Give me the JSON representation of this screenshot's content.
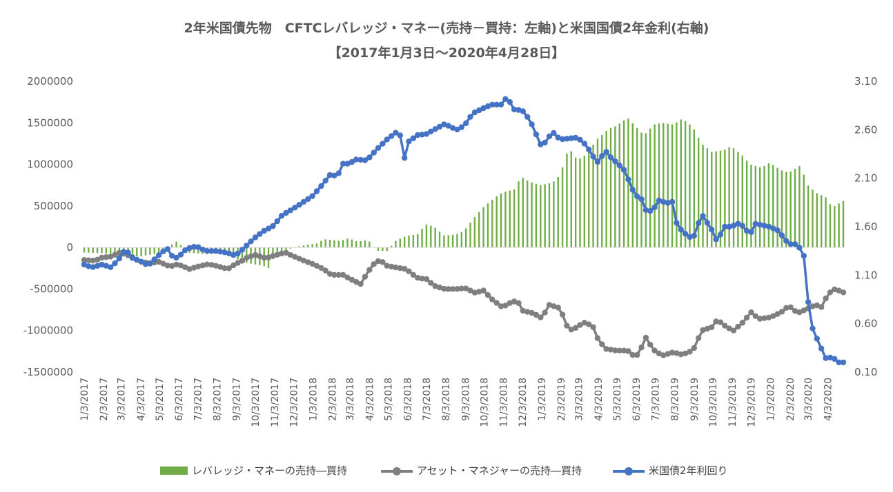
{
  "chart_data": {
    "type": "bar+line",
    "title": "2年米国債先物　CFTCレバレッジ・マネー(売持－買持：左軸)と米国国債2年金利(右軸)",
    "subtitle": "【2017年1月3日～2020年4月28日】",
    "x_tick_labels": [
      "1/3/2017",
      "2/3/2017",
      "3/3/2017",
      "4/3/2017",
      "5/3/2017",
      "6/3/2017",
      "7/3/2017",
      "8/3/2017",
      "9/3/2017",
      "10/3/2017",
      "11/3/2017",
      "12/3/2017",
      "1/3/2018",
      "2/3/2018",
      "3/3/2018",
      "4/3/2018",
      "5/3/2018",
      "6/3/2018",
      "7/3/2018",
      "8/3/2018",
      "9/3/2018",
      "10/3/2018",
      "11/3/2018",
      "12/3/2018",
      "1/3/2019",
      "2/3/2019",
      "3/3/2019",
      "4/3/2019",
      "5/3/2019",
      "6/3/2019",
      "7/3/2019",
      "8/3/2019",
      "9/3/2019",
      "10/3/2019",
      "11/3/2019",
      "12/3/2019",
      "1/3/2020",
      "2/3/2020",
      "3/3/2020",
      "4/3/2020"
    ],
    "x_start": "2017-01-03",
    "x_end": "2020-04-28",
    "y_left": {
      "ticks": [
        "2000000",
        "1500000",
        "1000000",
        "500000",
        "0",
        "-500000",
        "-1000000",
        "-1500000"
      ],
      "min": -1500000,
      "max": 2000000
    },
    "y_right": {
      "ticks": [
        "3.10",
        "2.60",
        "2.10",
        "1.60",
        "1.10",
        "0.60",
        "0.10"
      ],
      "min": 0.1,
      "max": 3.1
    },
    "grid": false,
    "legend_position": "bottom",
    "series": [
      {
        "name": "レバレッジ・マネーの売持―買持",
        "kind": "bar",
        "axis": "left",
        "color": "#70ad47",
        "points": [
          [
            "2017-01-03",
            -60000
          ],
          [
            "2017-02-01",
            -70000
          ],
          [
            "2017-03-01",
            -80000
          ],
          [
            "2017-04-01",
            -110000
          ],
          [
            "2017-05-01",
            -70000
          ],
          [
            "2017-06-01",
            80000
          ],
          [
            "2017-06-15",
            -60000
          ],
          [
            "2017-07-15",
            -80000
          ],
          [
            "2017-08-15",
            -70000
          ],
          [
            "2017-09-15",
            -180000
          ],
          [
            "2017-10-15",
            -220000
          ],
          [
            "2017-10-25",
            -250000
          ],
          [
            "2017-11-01",
            -120000
          ],
          [
            "2017-11-15",
            -40000
          ],
          [
            "2017-12-15",
            20000
          ],
          [
            "2018-01-10",
            50000
          ],
          [
            "2018-01-20",
            100000
          ],
          [
            "2018-02-15",
            80000
          ],
          [
            "2018-03-01",
            110000
          ],
          [
            "2018-03-15",
            70000
          ],
          [
            "2018-04-01",
            90000
          ],
          [
            "2018-04-15",
            -40000
          ],
          [
            "2018-05-01",
            -40000
          ],
          [
            "2018-05-15",
            80000
          ],
          [
            "2018-06-01",
            140000
          ],
          [
            "2018-06-20",
            160000
          ],
          [
            "2018-07-01",
            280000
          ],
          [
            "2018-07-15",
            250000
          ],
          [
            "2018-08-01",
            140000
          ],
          [
            "2018-08-20",
            160000
          ],
          [
            "2018-09-01",
            200000
          ],
          [
            "2018-09-15",
            340000
          ],
          [
            "2018-10-01",
            480000
          ],
          [
            "2018-10-20",
            600000
          ],
          [
            "2018-11-01",
            660000
          ],
          [
            "2018-11-20",
            700000
          ],
          [
            "2018-12-01",
            850000
          ],
          [
            "2018-12-15",
            790000
          ],
          [
            "2019-01-01",
            750000
          ],
          [
            "2019-01-20",
            780000
          ],
          [
            "2019-02-01",
            870000
          ],
          [
            "2019-02-15",
            1200000
          ],
          [
            "2019-03-01",
            1050000
          ],
          [
            "2019-03-15",
            1120000
          ],
          [
            "2019-04-01",
            1300000
          ],
          [
            "2019-04-20",
            1430000
          ],
          [
            "2019-05-01",
            1460000
          ],
          [
            "2019-05-20",
            1560000
          ],
          [
            "2019-06-01",
            1460000
          ],
          [
            "2019-06-15",
            1350000
          ],
          [
            "2019-07-01",
            1480000
          ],
          [
            "2019-07-15",
            1500000
          ],
          [
            "2019-08-01",
            1480000
          ],
          [
            "2019-08-15",
            1550000
          ],
          [
            "2019-09-01",
            1450000
          ],
          [
            "2019-09-15",
            1250000
          ],
          [
            "2019-10-01",
            1150000
          ],
          [
            "2019-10-20",
            1170000
          ],
          [
            "2019-11-01",
            1220000
          ],
          [
            "2019-11-20",
            1100000
          ],
          [
            "2019-12-01",
            1000000
          ],
          [
            "2019-12-20",
            960000
          ],
          [
            "2020-01-01",
            1020000
          ],
          [
            "2020-01-20",
            930000
          ],
          [
            "2020-02-01",
            900000
          ],
          [
            "2020-02-20",
            990000
          ],
          [
            "2020-03-01",
            760000
          ],
          [
            "2020-03-15",
            660000
          ],
          [
            "2020-04-01",
            600000
          ],
          [
            "2020-04-10",
            480000
          ],
          [
            "2020-04-28",
            560000
          ]
        ]
      },
      {
        "name": "アセット・マネジャーの売持―買持",
        "kind": "line",
        "axis": "left",
        "color": "#7f7f7f",
        "points": [
          [
            "2017-01-03",
            -150000
          ],
          [
            "2017-01-20",
            -160000
          ],
          [
            "2017-02-01",
            -120000
          ],
          [
            "2017-02-15",
            -110000
          ],
          [
            "2017-03-01",
            -60000
          ],
          [
            "2017-03-20",
            -110000
          ],
          [
            "2017-04-01",
            -170000
          ],
          [
            "2017-04-20",
            -190000
          ],
          [
            "2017-05-01",
            -170000
          ],
          [
            "2017-05-20",
            -230000
          ],
          [
            "2017-06-01",
            -200000
          ],
          [
            "2017-06-20",
            -260000
          ],
          [
            "2017-07-03",
            -230000
          ],
          [
            "2017-07-20",
            -200000
          ],
          [
            "2017-08-01",
            -220000
          ],
          [
            "2017-08-20",
            -260000
          ],
          [
            "2017-09-01",
            -200000
          ],
          [
            "2017-09-10",
            -170000
          ],
          [
            "2017-09-20",
            -120000
          ],
          [
            "2017-10-03",
            -90000
          ],
          [
            "2017-10-20",
            -130000
          ],
          [
            "2017-11-01",
            -100000
          ],
          [
            "2017-11-20",
            -60000
          ],
          [
            "2017-12-01",
            -100000
          ],
          [
            "2017-12-20",
            -160000
          ],
          [
            "2018-01-03",
            -200000
          ],
          [
            "2018-01-20",
            -260000
          ],
          [
            "2018-02-01",
            -330000
          ],
          [
            "2018-02-20",
            -330000
          ],
          [
            "2018-03-01",
            -370000
          ],
          [
            "2018-03-20",
            -440000
          ],
          [
            "2018-04-01",
            -290000
          ],
          [
            "2018-04-10",
            -200000
          ],
          [
            "2018-04-20",
            -150000
          ],
          [
            "2018-05-01",
            -220000
          ],
          [
            "2018-05-15",
            -240000
          ],
          [
            "2018-06-01",
            -260000
          ],
          [
            "2018-06-10",
            -320000
          ],
          [
            "2018-06-20",
            -370000
          ],
          [
            "2018-07-03",
            -380000
          ],
          [
            "2018-07-15",
            -460000
          ],
          [
            "2018-08-01",
            -500000
          ],
          [
            "2018-08-20",
            -500000
          ],
          [
            "2018-09-03",
            -490000
          ],
          [
            "2018-09-20",
            -550000
          ],
          [
            "2018-10-01",
            -510000
          ],
          [
            "2018-10-15",
            -620000
          ],
          [
            "2018-11-01",
            -720000
          ],
          [
            "2018-11-15",
            -660000
          ],
          [
            "2018-11-25",
            -640000
          ],
          [
            "2018-12-03",
            -760000
          ],
          [
            "2018-12-20",
            -790000
          ],
          [
            "2019-01-03",
            -850000
          ],
          [
            "2019-01-15",
            -690000
          ],
          [
            "2019-02-01",
            -730000
          ],
          [
            "2019-02-15",
            -1000000
          ],
          [
            "2019-03-01",
            -960000
          ],
          [
            "2019-03-10",
            -900000
          ],
          [
            "2019-03-25",
            -940000
          ],
          [
            "2019-04-03",
            -1110000
          ],
          [
            "2019-04-15",
            -1220000
          ],
          [
            "2019-05-01",
            -1240000
          ],
          [
            "2019-05-20",
            -1240000
          ],
          [
            "2019-06-01",
            -1320000
          ],
          [
            "2019-06-10",
            -1240000
          ],
          [
            "2019-06-15",
            -1050000
          ],
          [
            "2019-06-25",
            -1170000
          ],
          [
            "2019-07-03",
            -1250000
          ],
          [
            "2019-07-15",
            -1300000
          ],
          [
            "2019-08-01",
            -1260000
          ],
          [
            "2019-08-15",
            -1290000
          ],
          [
            "2019-09-01",
            -1240000
          ],
          [
            "2019-09-05",
            -1180000
          ],
          [
            "2019-09-15",
            -1000000
          ],
          [
            "2019-10-01",
            -960000
          ],
          [
            "2019-10-10",
            -870000
          ],
          [
            "2019-10-25",
            -960000
          ],
          [
            "2019-11-05",
            -1000000
          ],
          [
            "2019-11-20",
            -900000
          ],
          [
            "2019-12-03",
            -780000
          ],
          [
            "2019-12-15",
            -860000
          ],
          [
            "2020-01-03",
            -840000
          ],
          [
            "2020-01-20",
            -780000
          ],
          [
            "2020-02-01",
            -700000
          ],
          [
            "2020-02-15",
            -790000
          ],
          [
            "2020-03-01",
            -740000
          ],
          [
            "2020-03-15",
            -690000
          ],
          [
            "2020-03-25",
            -720000
          ],
          [
            "2020-04-03",
            -560000
          ],
          [
            "2020-04-15",
            -500000
          ],
          [
            "2020-04-28",
            -540000
          ]
        ]
      },
      {
        "name": "米国債2年利回り",
        "kind": "line",
        "axis": "right",
        "color": "#4472c4",
        "points": [
          [
            "2017-01-03",
            1.21
          ],
          [
            "2017-01-15",
            1.18
          ],
          [
            "2017-02-01",
            1.21
          ],
          [
            "2017-02-15",
            1.18
          ],
          [
            "2017-03-01",
            1.28
          ],
          [
            "2017-03-10",
            1.37
          ],
          [
            "2017-03-20",
            1.28
          ],
          [
            "2017-04-01",
            1.25
          ],
          [
            "2017-04-15",
            1.2
          ],
          [
            "2017-05-01",
            1.3
          ],
          [
            "2017-05-15",
            1.38
          ],
          [
            "2017-05-25",
            1.28
          ],
          [
            "2017-06-01",
            1.28
          ],
          [
            "2017-06-15",
            1.37
          ],
          [
            "2017-07-01",
            1.4
          ],
          [
            "2017-07-15",
            1.35
          ],
          [
            "2017-08-01",
            1.35
          ],
          [
            "2017-08-20",
            1.33
          ],
          [
            "2017-09-01",
            1.3
          ],
          [
            "2017-09-15",
            1.38
          ],
          [
            "2017-10-01",
            1.48
          ],
          [
            "2017-10-15",
            1.55
          ],
          [
            "2017-11-01",
            1.61
          ],
          [
            "2017-11-15",
            1.72
          ],
          [
            "2017-12-01",
            1.78
          ],
          [
            "2017-12-20",
            1.86
          ],
          [
            "2018-01-03",
            1.92
          ],
          [
            "2018-01-20",
            2.05
          ],
          [
            "2018-02-01",
            2.15
          ],
          [
            "2018-02-10",
            2.11
          ],
          [
            "2018-02-20",
            2.25
          ],
          [
            "2018-03-01",
            2.25
          ],
          [
            "2018-03-15",
            2.3
          ],
          [
            "2018-03-25",
            2.28
          ],
          [
            "2018-04-01",
            2.3
          ],
          [
            "2018-04-15",
            2.4
          ],
          [
            "2018-05-01",
            2.5
          ],
          [
            "2018-05-15",
            2.57
          ],
          [
            "2018-05-25",
            2.53
          ],
          [
            "2018-05-29",
            2.31
          ],
          [
            "2018-06-05",
            2.48
          ],
          [
            "2018-06-20",
            2.55
          ],
          [
            "2018-07-01",
            2.55
          ],
          [
            "2018-07-15",
            2.6
          ],
          [
            "2018-08-01",
            2.66
          ],
          [
            "2018-08-20",
            2.6
          ],
          [
            "2018-09-01",
            2.64
          ],
          [
            "2018-09-15",
            2.77
          ],
          [
            "2018-10-01",
            2.82
          ],
          [
            "2018-10-15",
            2.86
          ],
          [
            "2018-11-01",
            2.86
          ],
          [
            "2018-11-08",
            2.94
          ],
          [
            "2018-11-20",
            2.81
          ],
          [
            "2018-12-03",
            2.8
          ],
          [
            "2018-12-15",
            2.7
          ],
          [
            "2019-01-03",
            2.42
          ],
          [
            "2019-01-20",
            2.58
          ],
          [
            "2019-02-01",
            2.5
          ],
          [
            "2019-02-15",
            2.51
          ],
          [
            "2019-03-01",
            2.52
          ],
          [
            "2019-03-15",
            2.44
          ],
          [
            "2019-04-01",
            2.26
          ],
          [
            "2019-04-15",
            2.38
          ],
          [
            "2019-04-25",
            2.3
          ],
          [
            "2019-05-01",
            2.27
          ],
          [
            "2019-05-15",
            2.18
          ],
          [
            "2019-06-01",
            1.92
          ],
          [
            "2019-06-10",
            1.9
          ],
          [
            "2019-06-20",
            1.74
          ],
          [
            "2019-07-01",
            1.79
          ],
          [
            "2019-07-10",
            1.88
          ],
          [
            "2019-07-20",
            1.84
          ],
          [
            "2019-08-01",
            1.86
          ],
          [
            "2019-08-05",
            1.65
          ],
          [
            "2019-08-15",
            1.55
          ],
          [
            "2019-09-01",
            1.47
          ],
          [
            "2019-09-15",
            1.73
          ],
          [
            "2019-10-01",
            1.57
          ],
          [
            "2019-10-10",
            1.44
          ],
          [
            "2019-10-20",
            1.6
          ],
          [
            "2019-11-01",
            1.6
          ],
          [
            "2019-11-15",
            1.64
          ],
          [
            "2019-12-01",
            1.52
          ],
          [
            "2019-12-10",
            1.63
          ],
          [
            "2020-01-01",
            1.6
          ],
          [
            "2020-01-15",
            1.56
          ],
          [
            "2020-02-01",
            1.42
          ],
          [
            "2020-02-15",
            1.42
          ],
          [
            "2020-02-25",
            1.3
          ],
          [
            "2020-03-01",
            0.9
          ],
          [
            "2020-03-10",
            0.55
          ],
          [
            "2020-03-20",
            0.4
          ],
          [
            "2020-04-01",
            0.23
          ],
          [
            "2020-04-10",
            0.26
          ],
          [
            "2020-04-20",
            0.2
          ],
          [
            "2020-04-28",
            0.2
          ]
        ]
      }
    ]
  }
}
